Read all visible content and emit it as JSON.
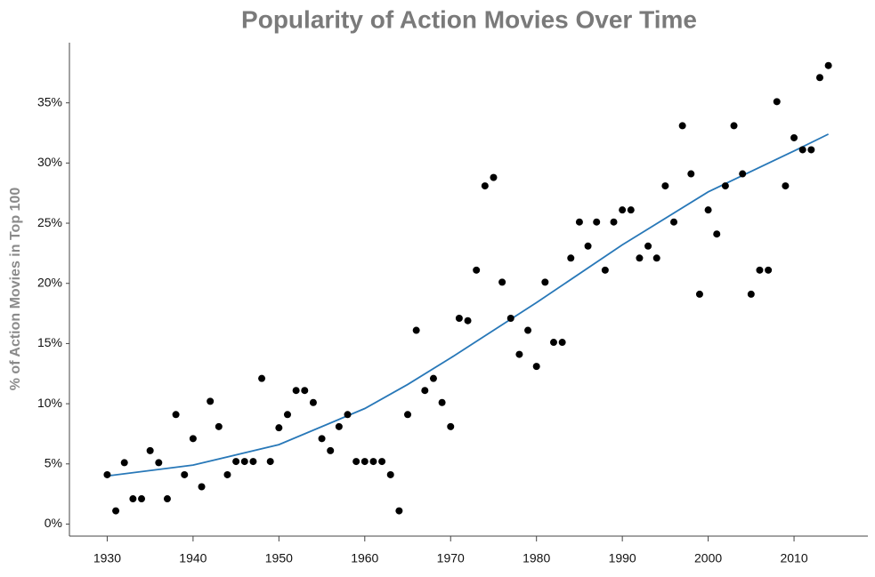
{
  "chart_data": {
    "type": "scatter",
    "title": "Popularity of Action Movies Over Time",
    "y_label": "% of Action Movies in Top 100",
    "x": [
      1930,
      1931,
      1932,
      1933,
      1934,
      1935,
      1936,
      1937,
      1938,
      1939,
      1940,
      1941,
      1942,
      1943,
      1944,
      1945,
      1946,
      1947,
      1948,
      1949,
      1950,
      1951,
      1952,
      1953,
      1954,
      1955,
      1956,
      1957,
      1958,
      1959,
      1960,
      1961,
      1962,
      1963,
      1964,
      1965,
      1966,
      1967,
      1968,
      1969,
      1970,
      1971,
      1972,
      1973,
      1974,
      1975,
      1976,
      1977,
      1978,
      1979,
      1980,
      1981,
      1982,
      1983,
      1984,
      1985,
      1986,
      1987,
      1988,
      1989,
      1990,
      1991,
      1992,
      1993,
      1994,
      1995,
      1996,
      1997,
      1998,
      1999,
      2000,
      2001,
      2002,
      2003,
      2004,
      2005,
      2006,
      2007,
      2008,
      2009,
      2010,
      2011,
      2012,
      2013,
      2014
    ],
    "values": [
      4.1,
      1.1,
      5.1,
      2.1,
      2.1,
      6.1,
      5.1,
      2.1,
      9.1,
      4.1,
      7.1,
      3.1,
      10.2,
      8.1,
      4.1,
      5.2,
      5.2,
      5.2,
      12.1,
      5.2,
      8.0,
      9.1,
      11.1,
      11.1,
      10.1,
      7.1,
      6.1,
      8.1,
      9.1,
      5.2,
      5.2,
      5.2,
      5.2,
      4.1,
      1.1,
      9.1,
      16.1,
      11.1,
      12.1,
      10.1,
      8.1,
      17.1,
      16.9,
      21.1,
      28.1,
      28.8,
      20.1,
      17.1,
      14.1,
      16.1,
      13.1,
      20.1,
      15.1,
      15.1,
      22.1,
      25.1,
      23.1,
      25.1,
      21.1,
      25.1,
      26.1,
      26.1,
      22.1,
      23.1,
      22.1,
      28.1,
      25.1,
      33.1,
      29.1,
      19.1,
      26.1,
      24.1,
      28.1,
      33.1,
      29.1,
      19.1,
      21.1,
      21.1,
      35.1,
      28.1,
      32.1,
      31.1,
      31.1,
      37.1,
      38.1
    ],
    "color": "#000000",
    "trend": {
      "x": [
        1930,
        1940,
        1950,
        1960,
        1965,
        1970,
        1980,
        1990,
        2000,
        2010,
        2014
      ],
      "values": [
        4.0,
        4.9,
        6.6,
        9.6,
        11.6,
        13.8,
        18.4,
        23.2,
        27.6,
        31.0,
        32.4
      ],
      "color": "#2878b8"
    },
    "xlim": [
      1925.6,
      2018.6
    ],
    "xticks": [
      1930,
      1940,
      1950,
      1960,
      1970,
      1980,
      1990,
      2000,
      2010
    ],
    "ylim": [
      -1,
      40
    ],
    "yticks": [
      {
        "value": 0,
        "label": "0%"
      },
      {
        "value": 5,
        "label": "5%"
      },
      {
        "value": 10,
        "label": "10%"
      },
      {
        "value": 15,
        "label": "15%"
      },
      {
        "value": 20,
        "label": "20%"
      },
      {
        "value": 25,
        "label": "25%"
      },
      {
        "value": 30,
        "label": "30%"
      },
      {
        "value": 35,
        "label": "35%"
      }
    ],
    "grid": false
  }
}
